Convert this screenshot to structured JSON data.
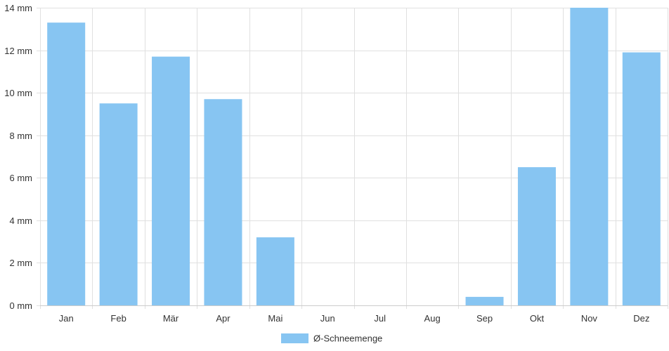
{
  "chart_data": {
    "type": "bar",
    "categories": [
      "Jan",
      "Feb",
      "Mär",
      "Apr",
      "Mai",
      "Jun",
      "Jul",
      "Aug",
      "Sep",
      "Okt",
      "Nov",
      "Dez"
    ],
    "series": [
      {
        "name": "Ø-Schneemenge",
        "values": [
          13.3,
          9.5,
          11.7,
          9.7,
          3.2,
          0,
          0,
          0,
          0.4,
          6.5,
          14.0,
          11.9
        ],
        "color": "#87c5f2"
      }
    ],
    "ylim": [
      0,
      14
    ],
    "yticks": [
      0,
      2,
      4,
      6,
      8,
      10,
      12,
      14
    ],
    "y_unit": "mm",
    "y_tick_labels": [
      "0 mm",
      "2 mm",
      "4 mm",
      "6 mm",
      "8 mm",
      "10 mm",
      "12 mm",
      "14 mm"
    ],
    "grid": true,
    "legend_position": "bottom-center",
    "grid_color": "#e0e0e0",
    "axis_color": "#cccccc",
    "text_color": "#333333"
  }
}
